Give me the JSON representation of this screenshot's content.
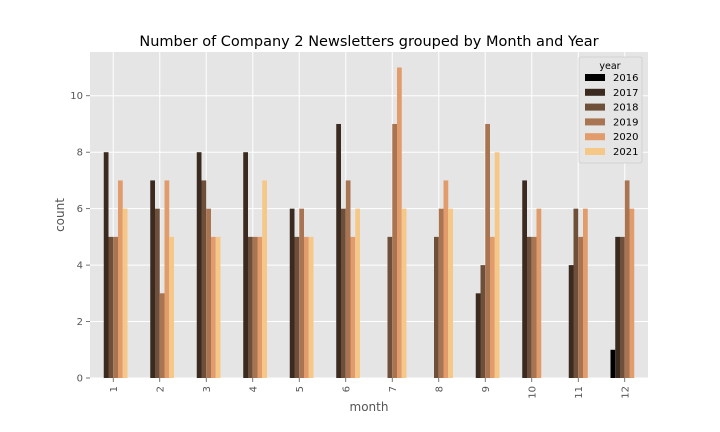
{
  "chart_data": {
    "type": "bar",
    "title": "Number of Company 2 Newsletters grouped by Month and Year",
    "xlabel": "month",
    "ylabel": "count",
    "ylim": [
      0,
      11.55
    ],
    "yticks": [
      "0",
      "2",
      "4",
      "6",
      "8",
      "10"
    ],
    "categories": [
      "1",
      "2",
      "3",
      "4",
      "5",
      "6",
      "7",
      "8",
      "9",
      "10",
      "11",
      "12"
    ],
    "legend_title": "year",
    "legend_position": "top-right",
    "grid": true,
    "series": [
      {
        "name": "2016",
        "color": "#000000",
        "values": [
          0,
          0,
          0,
          0,
          0,
          0,
          0,
          0,
          0,
          0,
          0,
          1
        ]
      },
      {
        "name": "2017",
        "color": "#3b2a20",
        "values": [
          8,
          7,
          8,
          8,
          6,
          9,
          0,
          0,
          3,
          7,
          4,
          5
        ]
      },
      {
        "name": "2018",
        "color": "#6e4f3a",
        "values": [
          5,
          6,
          7,
          5,
          5,
          6,
          5,
          5,
          4,
          5,
          6,
          5
        ]
      },
      {
        "name": "2019",
        "color": "#a87452",
        "values": [
          5,
          3,
          6,
          5,
          6,
          7,
          9,
          6,
          9,
          5,
          5,
          7
        ]
      },
      {
        "name": "2020",
        "color": "#e29b6b",
        "values": [
          7,
          7,
          5,
          5,
          5,
          5,
          11,
          7,
          5,
          6,
          6,
          6
        ]
      },
      {
        "name": "2021",
        "color": "#f6c887",
        "values": [
          6,
          5,
          5,
          7,
          5,
          6,
          6,
          6,
          8,
          0,
          0,
          0
        ]
      }
    ]
  }
}
